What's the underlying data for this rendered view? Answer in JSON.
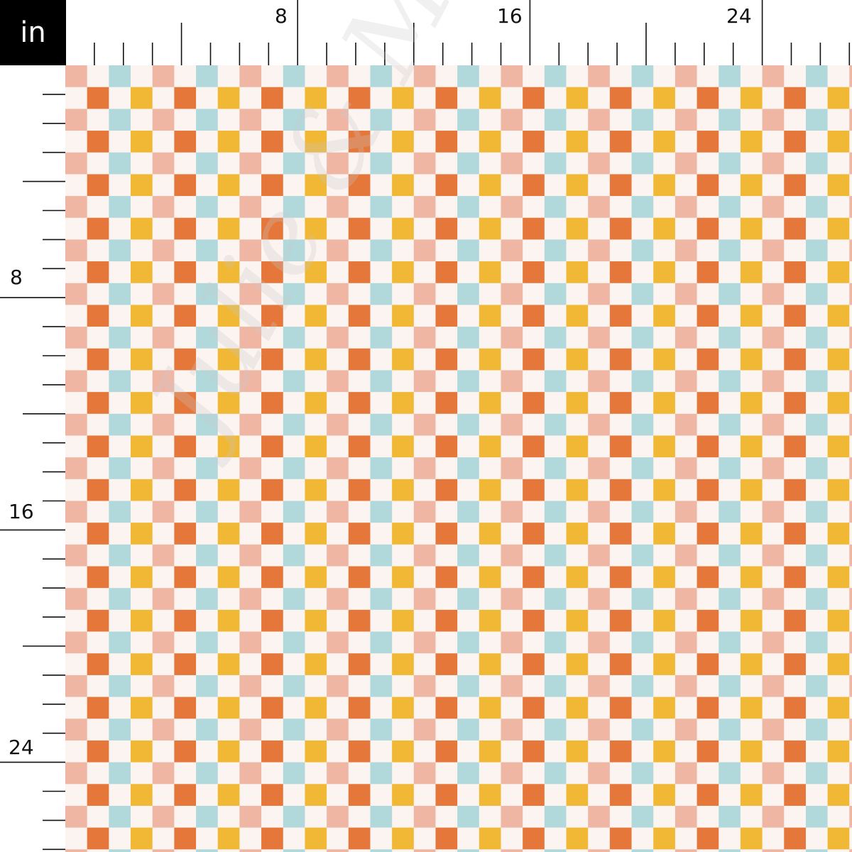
{
  "unit": "in",
  "ruler": {
    "top_labels": [
      "8",
      "16",
      "24"
    ],
    "left_labels": [
      "8",
      "16",
      "24"
    ],
    "tick_interval_in": 1,
    "long_tick_every_in": 4
  },
  "pattern": {
    "type": "checkerboard",
    "cell_size_in": 0.75,
    "colors": {
      "pink": "#efb6a4",
      "cream": "#fbf4f1",
      "blue": "#b1d9dc",
      "orange": "#e5773b",
      "yellow": "#f0b834"
    }
  },
  "watermark": "Julie & Mila"
}
